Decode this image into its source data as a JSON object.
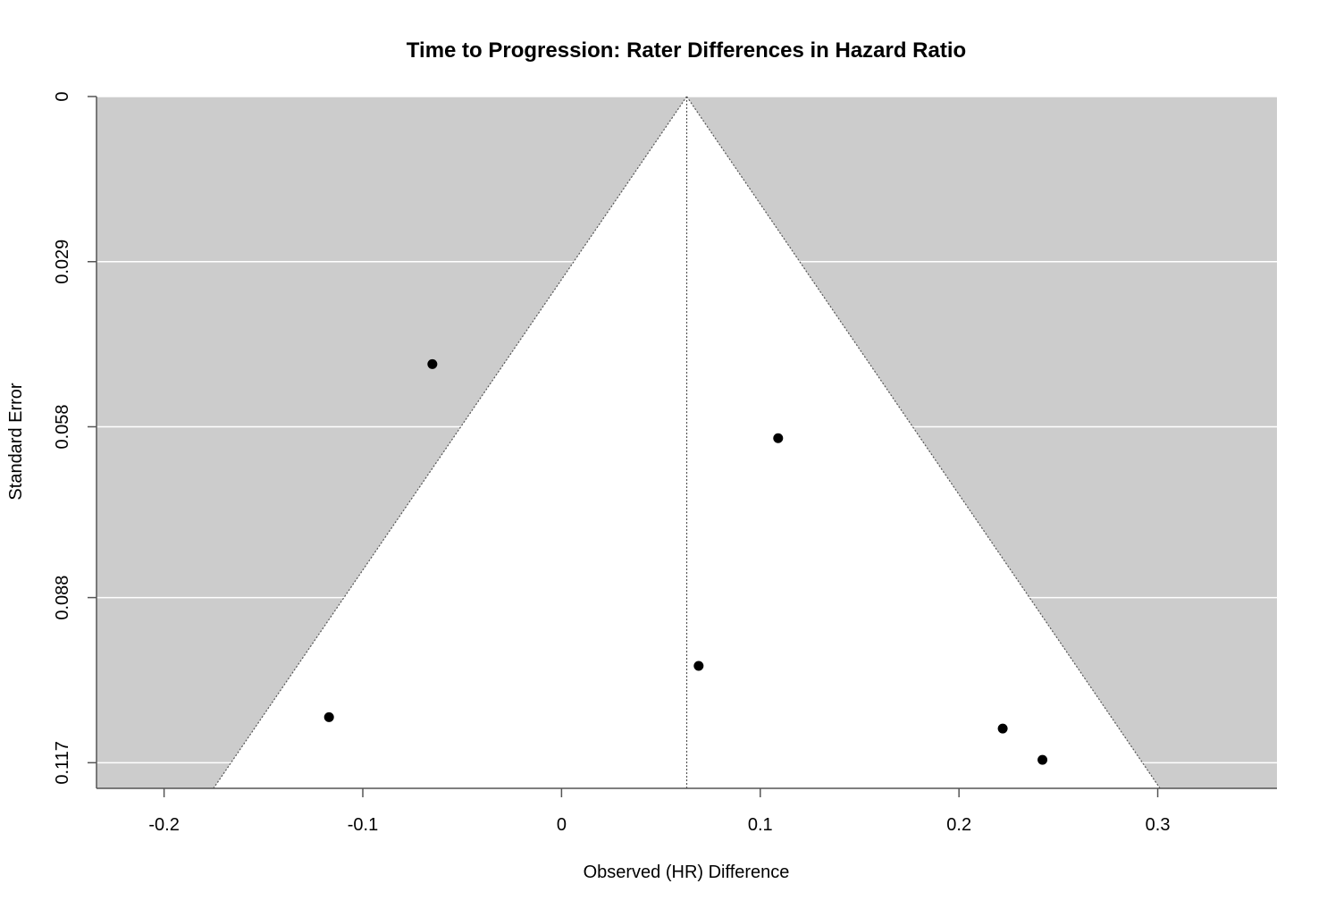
{
  "chart_data": {
    "type": "scatter",
    "title": "Time to Progression: Rater Differences in Hazard Ratio",
    "xlabel": "Observed (HR) Difference",
    "ylabel": "Standard Error",
    "xlim": [
      -0.234,
      0.36
    ],
    "ylim": [
      0.1215,
      0
    ],
    "y_reversed": true,
    "x_ticks": [
      -0.2,
      -0.1,
      0,
      0.1,
      0.2,
      0.3
    ],
    "x_tick_labels": [
      "-0.2",
      "-0.1",
      "0",
      "0.1",
      "0.2",
      "0.3"
    ],
    "y_ticks": [
      0,
      0.029,
      0.058,
      0.088,
      0.117
    ],
    "y_tick_labels": [
      "0",
      "0.029",
      "0.058",
      "0.088",
      "0.117"
    ],
    "grid": "horizontal white lines on gray background",
    "funnel": {
      "center_estimate": 0.063,
      "z": 1.96,
      "inside_color": "#ffffff",
      "outside_color": "#cccccc",
      "line_style": "dotted"
    },
    "series": [
      {
        "x": [
          -0.065,
          0.109,
          0.069,
          -0.117,
          0.222,
          0.242
        ],
        "y": [
          0.047,
          0.06,
          0.1,
          0.109,
          0.111,
          0.1165
        ]
      }
    ],
    "colors": {
      "points": "#000000",
      "panel_background": "#cccccc",
      "grid": "#ffffff",
      "axis": "#555555"
    }
  }
}
